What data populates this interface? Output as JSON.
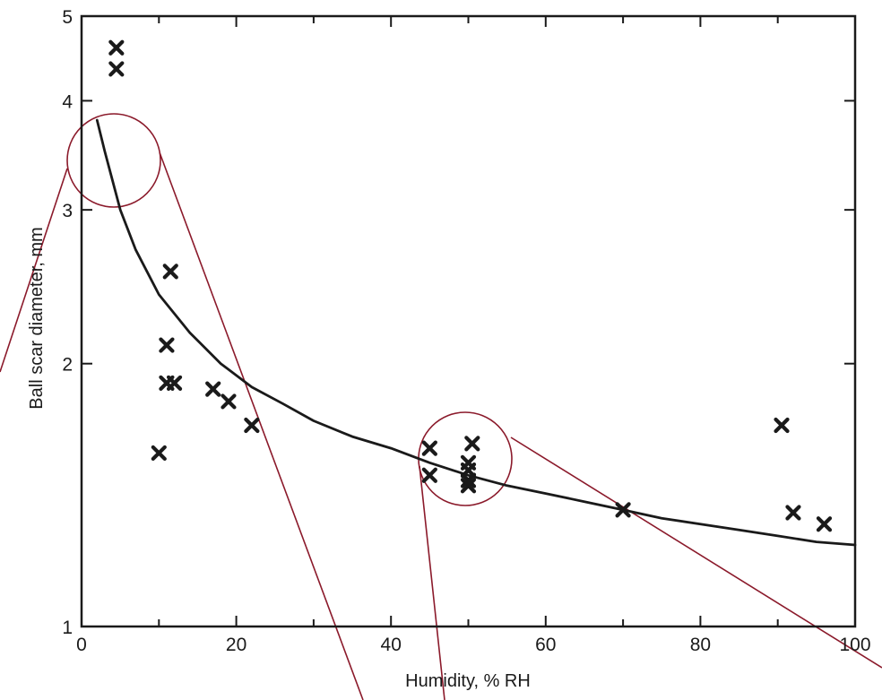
{
  "chart_data": {
    "type": "scatter",
    "title": "",
    "xlabel": "Humidity, % RH",
    "ylabel": "Ball scar diameter, mm",
    "xlim": [
      0,
      100
    ],
    "ylim": [
      1,
      5
    ],
    "yscale": "log",
    "x_ticks": [
      0,
      20,
      40,
      60,
      80,
      100
    ],
    "x_minor_ticks": [
      10,
      30,
      50,
      70,
      90
    ],
    "y_ticks": [
      1,
      2,
      3,
      4,
      5
    ],
    "grid": false,
    "series": [
      {
        "marker": "x",
        "points": [
          {
            "x": 4.5,
            "y": 4.6
          },
          {
            "x": 4.5,
            "y": 4.35
          },
          {
            "x": 11.5,
            "y": 2.55
          },
          {
            "x": 11.0,
            "y": 2.1
          },
          {
            "x": 11.0,
            "y": 1.9
          },
          {
            "x": 12.0,
            "y": 1.9
          },
          {
            "x": 10.0,
            "y": 1.58
          },
          {
            "x": 17.0,
            "y": 1.87
          },
          {
            "x": 19.0,
            "y": 1.81
          },
          {
            "x": 22.0,
            "y": 1.7
          },
          {
            "x": 45.0,
            "y": 1.6
          },
          {
            "x": 45.0,
            "y": 1.49
          },
          {
            "x": 50.5,
            "y": 1.62
          },
          {
            "x": 50.0,
            "y": 1.54
          },
          {
            "x": 50.0,
            "y": 1.51
          },
          {
            "x": 50.0,
            "y": 1.47
          },
          {
            "x": 50.0,
            "y": 1.45
          },
          {
            "x": 70.0,
            "y": 1.36
          },
          {
            "x": 90.5,
            "y": 1.7
          },
          {
            "x": 92.0,
            "y": 1.35
          },
          {
            "x": 96.0,
            "y": 1.31
          }
        ]
      },
      {
        "type": "line",
        "style": "fit-curve",
        "x": [
          2,
          3,
          5,
          7,
          10,
          14,
          18,
          22,
          26,
          30,
          35,
          40,
          45,
          50,
          55,
          60,
          65,
          70,
          75,
          80,
          85,
          90,
          95,
          100
        ],
        "y": [
          3.8,
          3.5,
          3.0,
          2.7,
          2.4,
          2.17,
          2.0,
          1.88,
          1.8,
          1.72,
          1.65,
          1.6,
          1.54,
          1.49,
          1.45,
          1.42,
          1.39,
          1.36,
          1.33,
          1.31,
          1.29,
          1.27,
          1.25,
          1.24
        ]
      }
    ]
  },
  "colors": {
    "axis": "#1a1a1a",
    "marker": "#1a1a1a",
    "curve": "#1a1a1a",
    "annotation": "#8b1a2b",
    "background": "#ffffff"
  }
}
